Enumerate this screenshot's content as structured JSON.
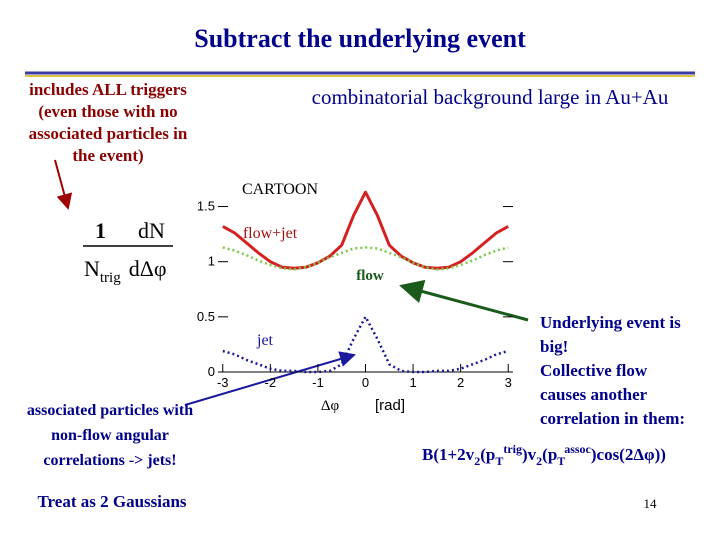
{
  "slide": {
    "title": "Subtract the underlying event",
    "trigger_note": [
      "includes ALL triggers",
      "(even those with no",
      "associated particles in",
      "the event)"
    ],
    "background_note": "combinatorial background large in Au+Au",
    "ylabel": {
      "numerator_1": "1",
      "numerator_2": "dN",
      "denominator_1": "N",
      "denominator_sub": "trig",
      "denominator_2": "dΔφ"
    },
    "jet_note": [
      "associated particles with",
      "non-flow angular",
      "correlations -> jets!"
    ],
    "gauss_note": "Treat as 2 Gaussians",
    "flow_note": [
      "Underlying event is",
      "big!",
      "Collective flow",
      "causes another",
      "correlation in them:"
    ],
    "formula": [
      "B(1+2v",
      "2",
      "(p",
      "T",
      "trig",
      ")v",
      "2",
      "(p",
      "T",
      "assoc",
      ")cos(2Δφ))"
    ],
    "page_number": "14"
  },
  "chart_data": {
    "type": "line",
    "annotations": {
      "cartoon": "CARTOON",
      "flow_jet": "flow+jet",
      "flow": "flow",
      "jet": "jet"
    },
    "xlabel": "Δφ",
    "xunit": "[rad]",
    "x": [
      -3,
      -2.75,
      -2.5,
      -2.25,
      -2,
      -1.75,
      -1.5,
      -1.25,
      -1,
      -0.75,
      -0.5,
      -0.25,
      0,
      0.25,
      0.5,
      0.75,
      1,
      1.25,
      1.5,
      1.75,
      2,
      2.25,
      2.5,
      2.75,
      3
    ],
    "series": [
      {
        "name": "flow+jet",
        "color": "#d42020",
        "dash": "solid",
        "values": [
          1.32,
          1.26,
          1.17,
          1.08,
          1.0,
          0.95,
          0.94,
          0.95,
          0.99,
          1.05,
          1.15,
          1.42,
          1.63,
          1.42,
          1.15,
          1.05,
          0.99,
          0.95,
          0.94,
          0.95,
          1.0,
          1.08,
          1.17,
          1.26,
          1.32
        ]
      },
      {
        "name": "flow",
        "color": "#7ac943",
        "dash": "dotted",
        "values": [
          1.13,
          1.1,
          1.06,
          1.01,
          0.97,
          0.94,
          0.93,
          0.95,
          0.99,
          1.04,
          1.08,
          1.12,
          1.13,
          1.12,
          1.08,
          1.04,
          0.99,
          0.95,
          0.93,
          0.94,
          0.97,
          1.01,
          1.06,
          1.1,
          1.13
        ]
      },
      {
        "name": "jet",
        "color": "#1a1a9a",
        "dash": "dotted",
        "values": [
          0.19,
          0.16,
          0.11,
          0.07,
          0.03,
          0.01,
          0.01,
          0,
          0,
          0.01,
          0.07,
          0.3,
          0.5,
          0.3,
          0.07,
          0.01,
          0,
          0,
          0.01,
          0.01,
          0.03,
          0.07,
          0.11,
          0.16,
          0.19
        ]
      }
    ],
    "xlim": [
      -3.1,
      3.1
    ],
    "ylim": [
      0,
      1.65
    ],
    "xticks": [
      -3,
      -2,
      -1,
      0,
      1,
      2,
      3
    ],
    "yticks": [
      0,
      0.5,
      1,
      1.5
    ]
  }
}
